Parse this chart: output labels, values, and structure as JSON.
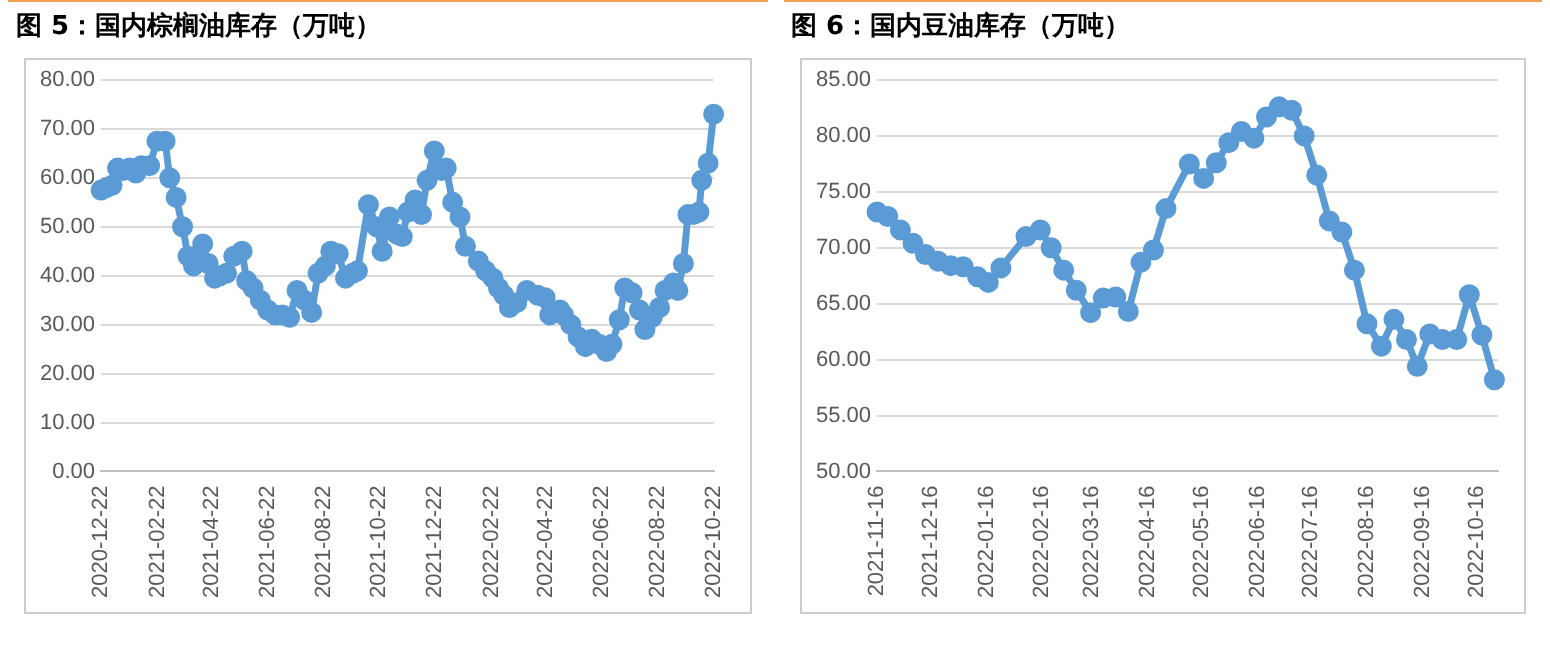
{
  "chart_data": [
    {
      "type": "line",
      "title": "图 5：国内棕榈油库存（万吨）",
      "color": "#5b9bd5",
      "marker": "circle",
      "grid": "y",
      "legend": false,
      "x": [
        "2020-12-22",
        "2020-12-28",
        "2021-01-03",
        "2021-01-09",
        "2021-01-15",
        "2021-01-22",
        "2021-01-29",
        "2021-02-04",
        "2021-02-13",
        "2021-02-21",
        "2021-03-02",
        "2021-03-07",
        "2021-03-14",
        "2021-03-21",
        "2021-03-27",
        "2021-04-02",
        "2021-04-07",
        "2021-04-12",
        "2021-04-18",
        "2021-04-25",
        "2021-05-01",
        "2021-05-08",
        "2021-05-16",
        "2021-05-25",
        "2021-05-30",
        "2021-06-06",
        "2021-06-14",
        "2021-06-22",
        "2021-06-30",
        "2021-07-08",
        "2021-07-16",
        "2021-07-24",
        "2021-08-01",
        "2021-08-09",
        "2021-08-16",
        "2021-08-24",
        "2021-08-30",
        "2021-09-07",
        "2021-09-15",
        "2021-09-23",
        "2021-09-28",
        "2021-10-10",
        "2021-10-19",
        "2021-10-25",
        "2021-11-02",
        "2021-11-10",
        "2021-11-16",
        "2021-11-22",
        "2021-11-30",
        "2021-12-07",
        "2021-12-13",
        "2021-12-21",
        "2021-12-29",
        "2022-01-03",
        "2022-01-10",
        "2022-01-18",
        "2022-01-24",
        "2022-02-07",
        "2022-02-15",
        "2022-02-23",
        "2022-03-01",
        "2022-03-07",
        "2022-03-13",
        "2022-03-21",
        "2022-04-01",
        "2022-04-13",
        "2022-04-21",
        "2022-04-26",
        "2022-05-07",
        "2022-05-11",
        "2022-05-19",
        "2022-05-27",
        "2022-06-04",
        "2022-06-11",
        "2022-06-19",
        "2022-06-27",
        "2022-07-03",
        "2022-07-11",
        "2022-07-17",
        "2022-07-25",
        "2022-08-02",
        "2022-08-08",
        "2022-08-16",
        "2022-08-24",
        "2022-08-30",
        "2022-09-08",
        "2022-09-13",
        "2022-09-19",
        "2022-09-24",
        "2022-09-30",
        "2022-10-06",
        "2022-10-09",
        "2022-10-16",
        "2022-10-22"
      ],
      "values": [
        57.5,
        58,
        58.5,
        62,
        61.5,
        62,
        61,
        62.5,
        62.5,
        67.5,
        67.5,
        60,
        56,
        50,
        44,
        42,
        43.5,
        46.5,
        42.5,
        39.5,
        40,
        40.5,
        44,
        45,
        39,
        37.5,
        35,
        33,
        32,
        32,
        31.5,
        37,
        35,
        32.5,
        40.5,
        42,
        45,
        44.5,
        39.5,
        40.5,
        41,
        54.5,
        50,
        45,
        52,
        48.5,
        48,
        53,
        55.5,
        52.5,
        59.5,
        65.5,
        61.5,
        62,
        55,
        52,
        46,
        43,
        41,
        39.5,
        37.5,
        36,
        33.5,
        34.5,
        37,
        36,
        35.5,
        32,
        33,
        32,
        30,
        27.5,
        25.5,
        27,
        26,
        24.5,
        26,
        31,
        37.5,
        36.5,
        33,
        29,
        31.5,
        33.5,
        37,
        38.5,
        37,
        42.5,
        52.5,
        52.5,
        53,
        59.5,
        63,
        73
      ],
      "xlim": [
        "2020-12-22",
        "2022-10-22"
      ],
      "xticks": [
        "2020-12-22",
        "2021-02-22",
        "2021-04-22",
        "2021-06-22",
        "2021-08-22",
        "2021-10-22",
        "2021-12-22",
        "2022-02-22",
        "2022-04-22",
        "2022-06-22",
        "2022-08-22",
        "2022-10-22"
      ],
      "ylim": [
        0,
        80
      ],
      "yticks": [
        {
          "value": 0,
          "label": "0.00"
        },
        {
          "value": 10,
          "label": "10.00"
        },
        {
          "value": 20,
          "label": "20.00"
        },
        {
          "value": 30,
          "label": "30.00"
        },
        {
          "value": 40,
          "label": "40.00"
        },
        {
          "value": 50,
          "label": "50.00"
        },
        {
          "value": 60,
          "label": "60.00"
        },
        {
          "value": 70,
          "label": "70.00"
        },
        {
          "value": 80,
          "label": "80.00"
        }
      ]
    },
    {
      "type": "line",
      "title": "图 6：国内豆油库存（万吨）",
      "color": "#5b9bd5",
      "marker": "circle",
      "grid": "y",
      "legend": false,
      "x": [
        "2021-11-16",
        "2021-11-22",
        "2021-11-29",
        "2021-12-06",
        "2021-12-13",
        "2021-12-20",
        "2021-12-27",
        "2022-01-03",
        "2022-01-11",
        "2022-01-17",
        "2022-01-24",
        "2022-02-07",
        "2022-02-15",
        "2022-02-21",
        "2022-02-28",
        "2022-03-07",
        "2022-03-15",
        "2022-03-22",
        "2022-03-29",
        "2022-04-05",
        "2022-04-12",
        "2022-04-19",
        "2022-04-26",
        "2022-05-09",
        "2022-05-17",
        "2022-05-24",
        "2022-05-31",
        "2022-06-07",
        "2022-06-14",
        "2022-06-21",
        "2022-06-28",
        "2022-07-05",
        "2022-07-12",
        "2022-07-19",
        "2022-07-26",
        "2022-08-02",
        "2022-08-09",
        "2022-08-16",
        "2022-08-24",
        "2022-08-31",
        "2022-09-07",
        "2022-09-13",
        "2022-09-20",
        "2022-09-27",
        "2022-10-05",
        "2022-10-12",
        "2022-10-19",
        "2022-10-26"
      ],
      "values": [
        73.2,
        72.8,
        71.6,
        70.4,
        69.4,
        68.8,
        68.4,
        68.3,
        67.4,
        66.9,
        68.2,
        71,
        71.6,
        70,
        68,
        66.2,
        64.2,
        65.5,
        65.6,
        64.3,
        68.7,
        69.8,
        73.5,
        77.5,
        76.2,
        77.6,
        79.4,
        80.4,
        79.8,
        81.7,
        82.6,
        82.3,
        80,
        76.5,
        72.4,
        71.4,
        68,
        63.2,
        61.2,
        63.6,
        61.8,
        59.4,
        62.3,
        61.8,
        61.8,
        65.8,
        62.2,
        58.2
      ],
      "xlim": [
        "2021-11-16",
        "2022-10-28"
      ],
      "xticks": [
        "2021-11-16",
        "2021-12-16",
        "2022-01-16",
        "2022-02-16",
        "2022-03-16",
        "2022-04-16",
        "2022-05-16",
        "2022-06-16",
        "2022-07-16",
        "2022-08-16",
        "2022-09-16",
        "2022-10-16"
      ],
      "ylim": [
        50,
        85
      ],
      "yticks": [
        {
          "value": 50,
          "label": "50.00"
        },
        {
          "value": 55,
          "label": "55.00"
        },
        {
          "value": 60,
          "label": "60.00"
        },
        {
          "value": 65,
          "label": "65.00"
        },
        {
          "value": 70,
          "label": "70.00"
        },
        {
          "value": 75,
          "label": "75.00"
        },
        {
          "value": 80,
          "label": "80.00"
        },
        {
          "value": 85,
          "label": "85.00"
        }
      ]
    }
  ]
}
